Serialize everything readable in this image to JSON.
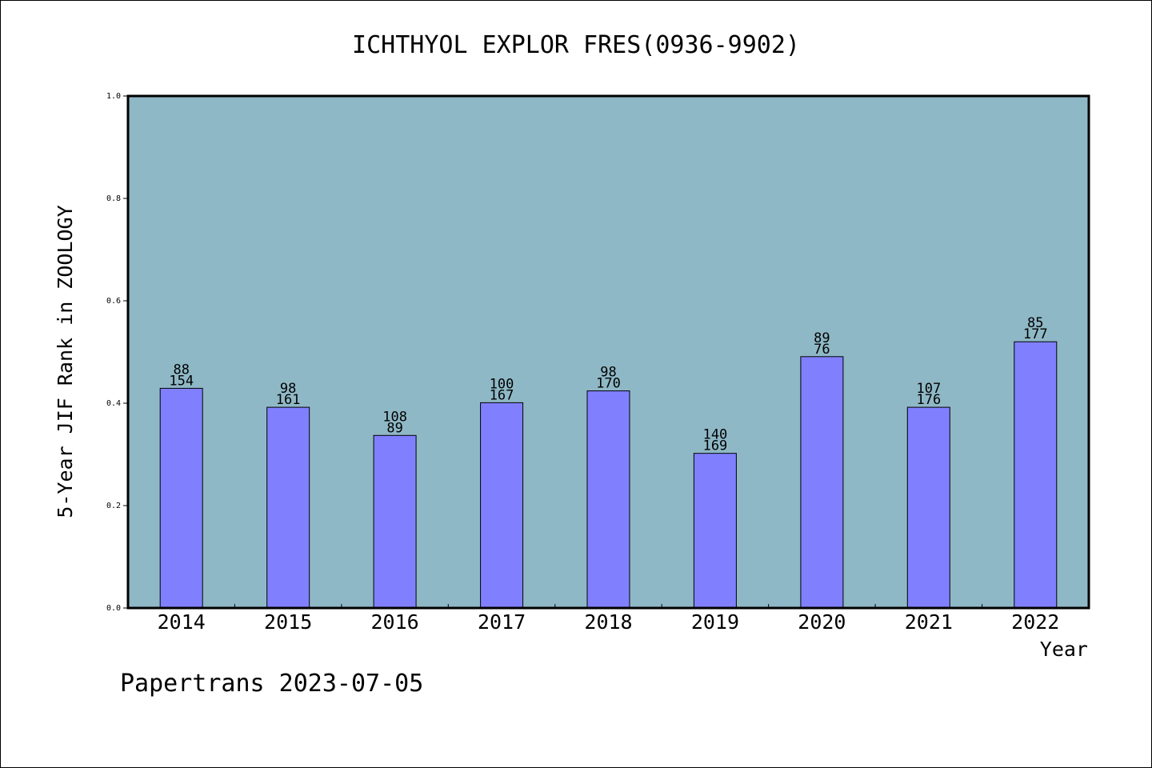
{
  "chart_data": {
    "type": "bar",
    "title": "ICHTHYOL EXPLOR FRES(0936-9902)",
    "xlabel": "Year",
    "ylabel": "5-Year JIF Rank in ZOOLOGY",
    "categories": [
      "2014",
      "2015",
      "2016",
      "2017",
      "2018",
      "2019",
      "2020",
      "2021",
      "2022"
    ],
    "values": [
      0.429,
      0.392,
      0.337,
      0.401,
      0.424,
      0.302,
      0.491,
      0.392,
      0.52
    ],
    "rank_labels": [
      "88",
      "98",
      "108",
      "100",
      "98",
      "140",
      "89",
      "107",
      "85"
    ],
    "total_labels": [
      "154",
      "161",
      "89",
      "167",
      "170",
      "169",
      "76",
      "176",
      "177"
    ],
    "ylim": [
      0.0,
      1.0
    ],
    "yticks": [
      "0.0",
      "0.2",
      "0.4",
      "0.6",
      "0.8",
      "1.0"
    ],
    "grid": false,
    "legend": "none",
    "colors": {
      "plot_background": "#8fb8c6",
      "bar_fill": "#8080ff",
      "bar_stroke": "#000000",
      "axis": "#000000",
      "text": "#000000"
    }
  },
  "footer": {
    "credit": "Papertrans 2023-07-05"
  }
}
